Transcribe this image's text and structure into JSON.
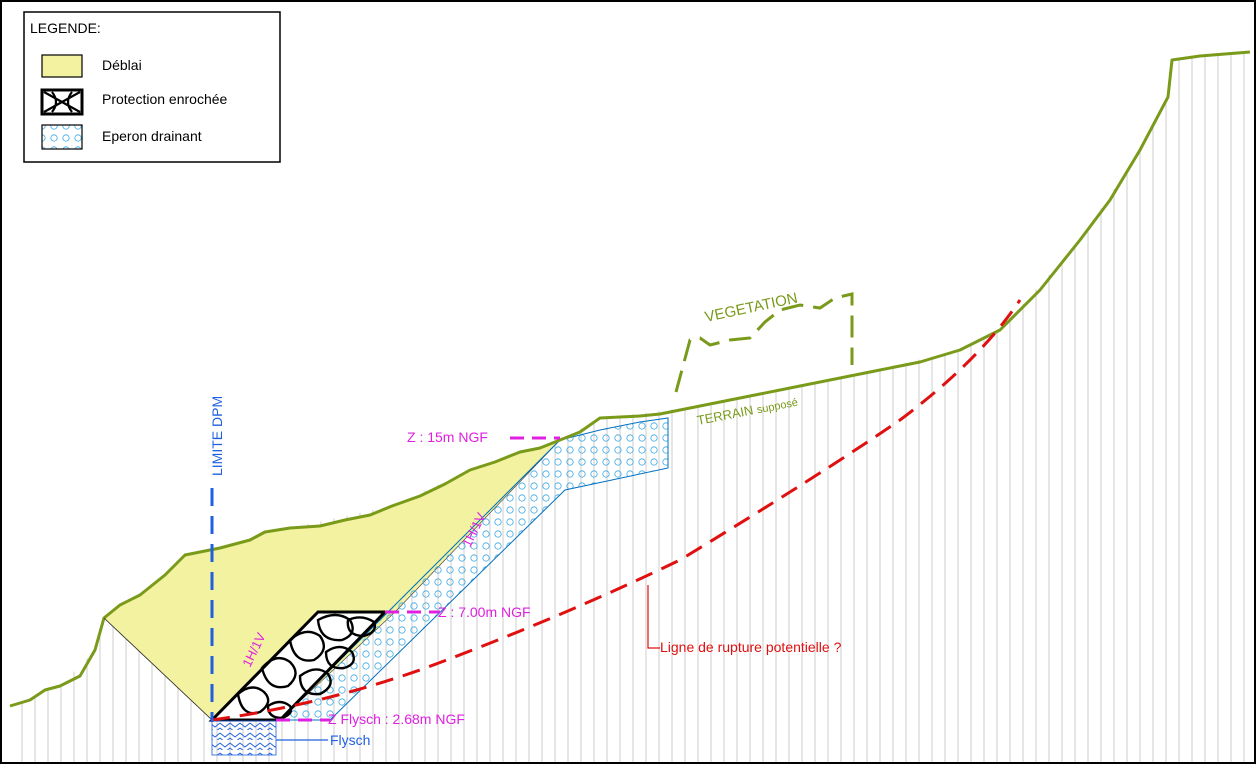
{
  "legend": {
    "title": "LEGENDE:",
    "items": [
      {
        "label": "Déblai",
        "pattern": "fill-icon"
      },
      {
        "label": "Protection enrochée",
        "pattern": "riprap-icon"
      },
      {
        "label": "Eperon drainant",
        "pattern": "drain-circles-icon"
      }
    ]
  },
  "labels": {
    "limite": "LIMITE DPM",
    "vegetation": "VEGETATION",
    "terrain": "TERRAIN",
    "terrain_suffix": "supposé",
    "z15": "Z : 15m NGF",
    "z7": "Z : 7.00m NGF",
    "z268": "Z Flysch : 2.68m NGF",
    "flysch": "Flysch",
    "rupture": "Ligne de rupture potentielle ?",
    "slope_riprap": "1H/1V",
    "slope_drain": "1H/1V"
  },
  "colors": {
    "terrain": "#7a9a1a",
    "deblai": "#f2f2a0",
    "drain": "#0070c0",
    "drain_fill": "#e6f7ff",
    "annot": "#e020e0",
    "rupture": "#e01010",
    "limite": "#1f5fe0",
    "grid": "#b8b8b8"
  }
}
